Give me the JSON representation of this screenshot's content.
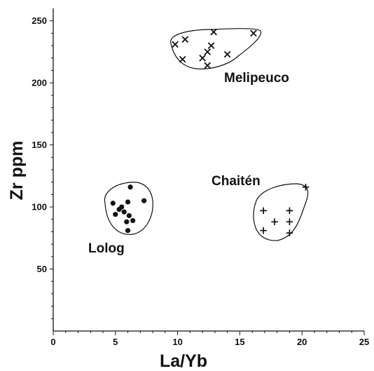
{
  "chart_data": {
    "type": "scatter",
    "title": "",
    "xlabel": "La/Yb",
    "ylabel": "Zr ppm",
    "xlim": [
      0,
      25
    ],
    "ylim": [
      0,
      260
    ],
    "x_ticks": [
      0,
      5,
      10,
      15,
      20,
      25
    ],
    "y_ticks": [
      50,
      100,
      150,
      200,
      250
    ],
    "grid": false,
    "series": [
      {
        "name": "Melipeuco",
        "marker": "x",
        "points": [
          [
            9.8,
            231
          ],
          [
            10.6,
            235
          ],
          [
            10.4,
            219
          ],
          [
            12.0,
            220
          ],
          [
            12.4,
            225
          ],
          [
            12.9,
            241
          ],
          [
            12.7,
            230
          ],
          [
            12.4,
            214
          ],
          [
            14.0,
            223
          ],
          [
            16.1,
            240
          ]
        ]
      },
      {
        "name": "Chaitén",
        "marker": "plus",
        "points": [
          [
            16.9,
            97
          ],
          [
            16.9,
            81
          ],
          [
            17.8,
            88
          ],
          [
            19.0,
            97
          ],
          [
            19.0,
            88
          ],
          [
            19.0,
            79
          ],
          [
            20.3,
            116
          ]
        ]
      },
      {
        "name": "Lolog",
        "marker": "dot",
        "points": [
          [
            4.8,
            103
          ],
          [
            5.0,
            94
          ],
          [
            5.3,
            98
          ],
          [
            5.5,
            100
          ],
          [
            5.7,
            96
          ],
          [
            6.0,
            104
          ],
          [
            6.2,
            116
          ],
          [
            6.1,
            93
          ],
          [
            5.9,
            88
          ],
          [
            6.4,
            89
          ],
          [
            6.0,
            81
          ],
          [
            7.3,
            105
          ]
        ]
      }
    ]
  }
}
